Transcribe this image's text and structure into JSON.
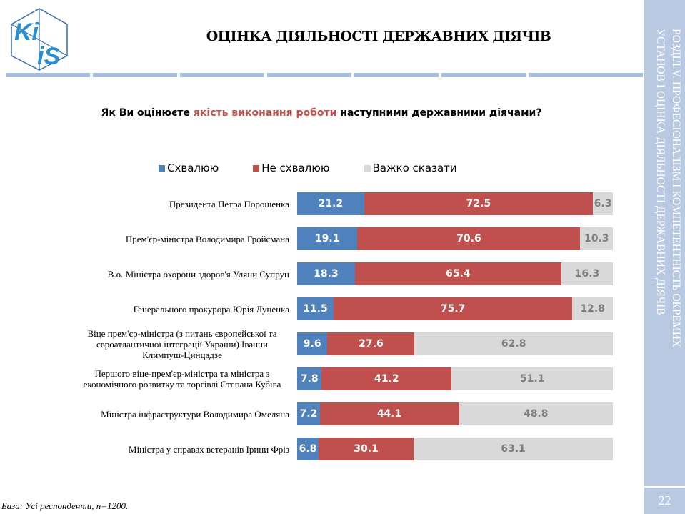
{
  "header": {
    "title": "ОЦІНКА ДІЯЛЬНОСТІ ДЕРЖАВНИХ ДІЯЧІВ",
    "logo_text": "KiiS"
  },
  "question": {
    "before": "Як Ви оцінюєте ",
    "highlight": "якість виконання роботи",
    "after": " наступними державними діячами?"
  },
  "sidebar": {
    "section_line1": "РОЗДІЛ V. ПРОФЕСІОНАЛІЗМ І КОМПЕТЕНТНІСТЬ ОКРЕМИХ",
    "section_line2": "УСТАНОВ І ОЦІНКА ДІЯЛЬНОСТІ ДЕРЖАВНИХ ДІЯЧІВ",
    "page_number": "22"
  },
  "footer": {
    "base": "База: Усі респонденти, n=1200."
  },
  "colors": {
    "approve": "#4f81bd",
    "disapprove": "#c0504d",
    "hard_to_say": "#d9d9d9",
    "accent": "#b8c9e1"
  },
  "chart_data": {
    "type": "bar",
    "stacked": true,
    "orientation": "horizontal",
    "legend_position": "top",
    "categories": [
      "Президента Петра Порошенка",
      "Прем'єр-міністра Володимира Гройсмана",
      "В.о. Міністра охорони здоров'я Уляни Супрун",
      "Генерального прокурора Юрія Луценка",
      "Віце прем'єр-міністра (з питань європейської та євроатлантичної інтеграції України) Іванни Климпуш-Цинцадзе",
      "Першого віце-прем'єр-міністра та міністра з економічного розвитку та торгівлі Степана Кубіва",
      "Міністра інфраструктури Володимира Омеляна",
      "Міністра у справах ветеранів Ірини Фріз"
    ],
    "series": [
      {
        "name": "Схвалюю",
        "values": [
          21.2,
          19.1,
          18.3,
          11.5,
          9.6,
          7.8,
          7.2,
          6.8
        ]
      },
      {
        "name": "Не схвалюю",
        "values": [
          72.5,
          70.6,
          65.4,
          75.7,
          27.6,
          41.2,
          44.1,
          30.1
        ]
      },
      {
        "name": "Важко сказати",
        "values": [
          6.3,
          10.3,
          16.3,
          12.8,
          62.8,
          51.1,
          48.8,
          63.1
        ]
      }
    ]
  }
}
